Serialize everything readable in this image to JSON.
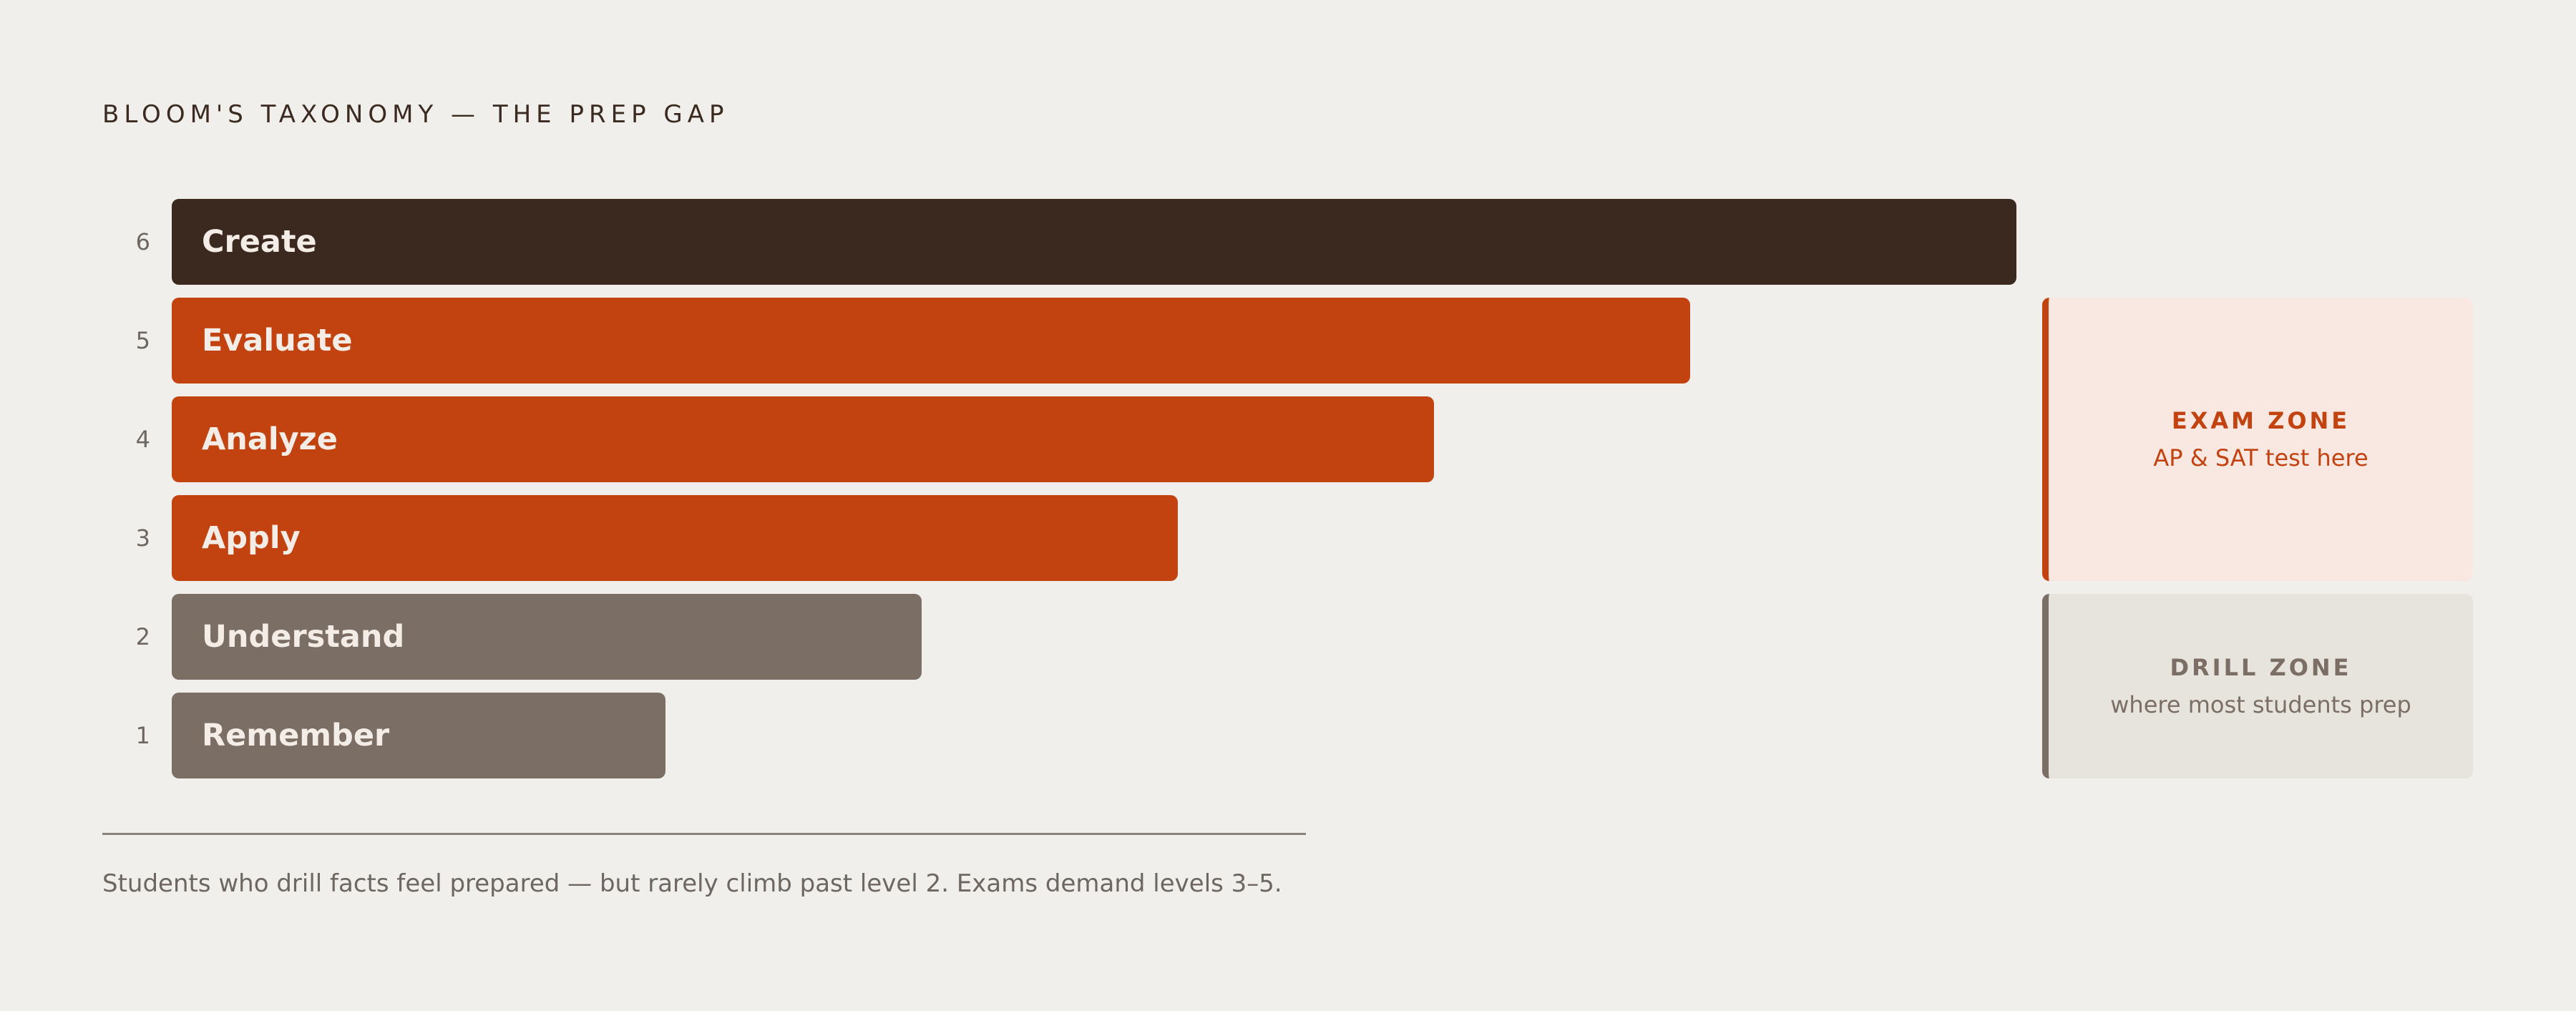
{
  "title": "BLOOM'S TAXONOMY — THE PREP GAP",
  "levels": [
    {
      "number": "6",
      "label": "Create",
      "value": 6,
      "color": "#3b2920"
    },
    {
      "number": "5",
      "label": "Evaluate",
      "value": 5,
      "color": "#c2430f"
    },
    {
      "number": "4",
      "label": "Analyze",
      "value": 4,
      "color": "#c2430f"
    },
    {
      "number": "3",
      "label": "Apply",
      "value": 3,
      "color": "#c2430f"
    },
    {
      "number": "2",
      "label": "Understand",
      "value": 2,
      "color": "#7b6e65"
    },
    {
      "number": "1",
      "label": "Remember",
      "value": 1,
      "color": "#7b6e65"
    }
  ],
  "zones": {
    "exam": {
      "title": "EXAM ZONE",
      "subtitle": "AP & SAT test here",
      "levels": [
        3,
        5
      ],
      "accent": "#c2430f",
      "background": "#f9e8e1"
    },
    "drill": {
      "title": "DRILL ZONE",
      "subtitle": "where most students prep",
      "levels": [
        1,
        2
      ],
      "accent": "#7b6e65",
      "background": "#e7e4de"
    }
  },
  "footnote": "Students who drill facts feel prepared — but rarely climb past level 2. Exams demand levels 3–5."
}
